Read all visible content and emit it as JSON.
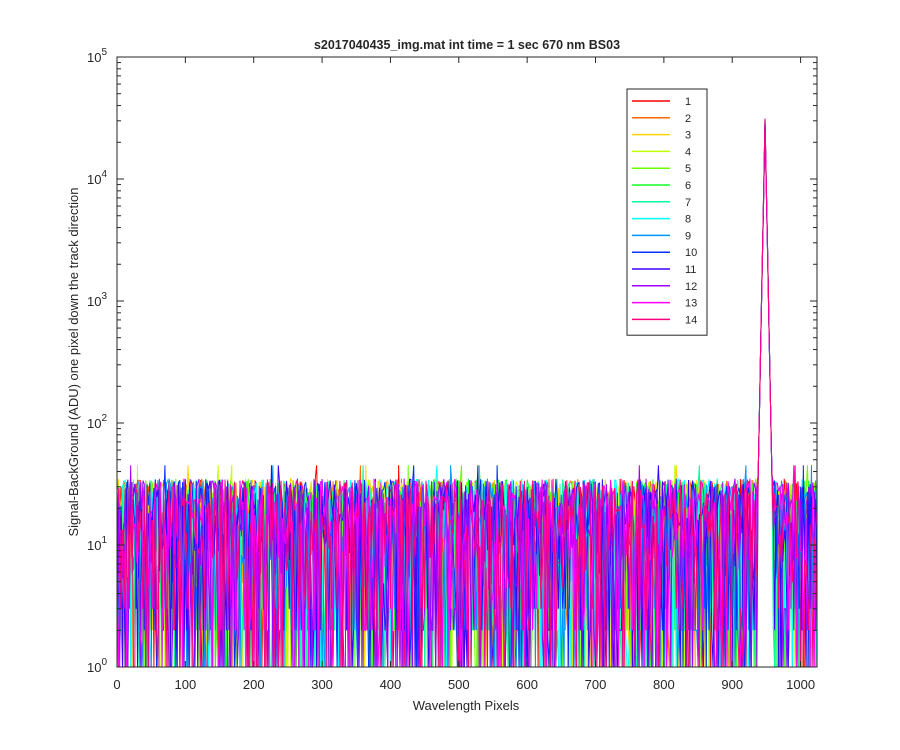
{
  "chart_data": {
    "type": "line",
    "title": "s2017040435_img.mat int time = 1 sec  670 nm BS03",
    "xlabel": "Wavelength Pixels",
    "ylabel": "Signal-BackGround (ADU) one pixel down the track direction",
    "xlim": [
      0,
      1024
    ],
    "ylim": [
      1,
      100000
    ],
    "yscale": "log",
    "grid": false,
    "legend_position": "top-right",
    "x_ticks": [
      "0",
      "100",
      "200",
      "300",
      "400",
      "500",
      "600",
      "700",
      "800",
      "900",
      "1000"
    ],
    "y_ticks": [
      {
        "base": "10",
        "exp": "0"
      },
      {
        "base": "10",
        "exp": "1"
      },
      {
        "base": "10",
        "exp": "2"
      },
      {
        "base": "10",
        "exp": "3"
      },
      {
        "base": "10",
        "exp": "4"
      },
      {
        "base": "10",
        "exp": "5"
      }
    ],
    "noise": {
      "x_start": 0,
      "x_end": 1024,
      "typical_range": [
        1,
        35
      ],
      "max_spike": 45
    },
    "peak": {
      "x_start": 936,
      "x_center": 948,
      "x_end": 960,
      "value_range": [
        28000,
        34000
      ]
    },
    "series": [
      {
        "name": "1",
        "color": "#ff0000"
      },
      {
        "name": "2",
        "color": "#ff6a00"
      },
      {
        "name": "3",
        "color": "#ffd400"
      },
      {
        "name": "4",
        "color": "#c0ff00"
      },
      {
        "name": "5",
        "color": "#6aff00"
      },
      {
        "name": "6",
        "color": "#15ff2a"
      },
      {
        "name": "7",
        "color": "#00ff9a"
      },
      {
        "name": "8",
        "color": "#00ffff"
      },
      {
        "name": "9",
        "color": "#0095ff"
      },
      {
        "name": "10",
        "color": "#0030ff"
      },
      {
        "name": "11",
        "color": "#3a00ff"
      },
      {
        "name": "12",
        "color": "#a000ff"
      },
      {
        "name": "13",
        "color": "#ff00ff"
      },
      {
        "name": "14",
        "color": "#ff0080"
      }
    ]
  }
}
